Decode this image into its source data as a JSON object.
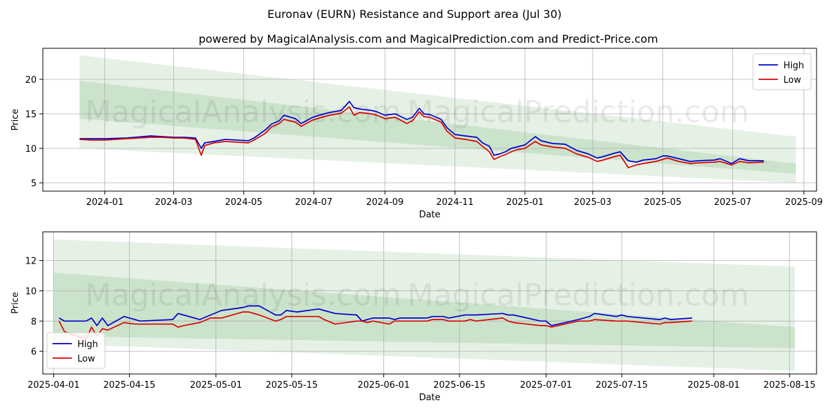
{
  "title": "Euronav (EURN) Resistance and Support area (Jul 30)",
  "subtitle": "powered by MagicalAnalysis.com and MagicalPrediction.com and Predict-Price.com",
  "watermark": [
    "MagicalAnalysis.com",
    "MagicalPrediction.com"
  ],
  "colors": {
    "high": "#0000cc",
    "low": "#dd0000",
    "band": "#2e8b2e",
    "grid": "#b0b0b0"
  },
  "chart_data": [
    {
      "type": "line",
      "xlabel": "Date",
      "ylabel": "Price",
      "xlim": [
        "2023-11-08",
        "2025-09-12"
      ],
      "ylim": [
        3.8,
        24.5
      ],
      "x_ticks": [
        "2024-01",
        "2024-03",
        "2024-05",
        "2024-07",
        "2024-09",
        "2024-11",
        "2025-01",
        "2025-03",
        "2025-05",
        "2025-07",
        "2025-09"
      ],
      "y_ticks": [
        5,
        10,
        15,
        20
      ],
      "grid": true,
      "legend": "top-right",
      "bands": [
        {
          "x": [
            "2023-12-10",
            "2025-08-25"
          ],
          "upper": [
            23.5,
            11.7
          ],
          "lower": [
            10.0,
            5.0
          ],
          "opacity": "light"
        },
        {
          "x": [
            "2023-12-10",
            "2025-08-25"
          ],
          "upper": [
            19.8,
            7.8
          ],
          "lower": [
            14.3,
            6.3
          ],
          "opacity": "medium"
        }
      ],
      "series": [
        {
          "name": "High",
          "x": [
            "2023-12-10",
            "2023-12-20",
            "2024-01-01",
            "2024-01-20",
            "2024-02-10",
            "2024-02-20",
            "2024-03-01",
            "2024-03-10",
            "2024-03-20",
            "2024-03-25",
            "2024-03-28",
            "2024-04-05",
            "2024-04-15",
            "2024-04-25",
            "2024-05-05",
            "2024-05-10",
            "2024-05-20",
            "2024-05-25",
            "2024-06-01",
            "2024-06-05",
            "2024-06-15",
            "2024-06-20",
            "2024-06-30",
            "2024-07-10",
            "2024-07-15",
            "2024-07-25",
            "2024-08-01",
            "2024-08-05",
            "2024-08-10",
            "2024-08-20",
            "2024-08-25",
            "2024-09-01",
            "2024-09-10",
            "2024-09-20",
            "2024-09-25",
            "2024-10-01",
            "2024-10-05",
            "2024-10-10",
            "2024-10-20",
            "2024-10-25",
            "2024-11-01",
            "2024-11-10",
            "2024-11-20",
            "2024-11-25",
            "2024-12-01",
            "2024-12-05",
            "2024-12-10",
            "2024-12-15",
            "2024-12-20",
            "2024-12-25",
            "2025-01-01",
            "2025-01-10",
            "2025-01-15",
            "2025-01-25",
            "2025-02-05",
            "2025-02-15",
            "2025-02-25",
            "2025-03-05",
            "2025-03-10",
            "2025-03-20",
            "2025-03-25",
            "2025-04-01",
            "2025-04-08",
            "2025-04-14",
            "2025-04-25",
            "2025-05-01",
            "2025-05-05",
            "2025-05-15",
            "2025-05-25",
            "2025-06-01",
            "2025-06-15",
            "2025-06-20",
            "2025-06-30",
            "2025-07-07",
            "2025-07-15",
            "2025-07-28"
          ],
          "values": [
            11.4,
            11.4,
            11.4,
            11.5,
            11.8,
            11.7,
            11.6,
            11.6,
            11.5,
            10.0,
            10.8,
            11.0,
            11.3,
            11.2,
            11.1,
            11.5,
            12.7,
            13.5,
            14.0,
            14.8,
            14.3,
            13.6,
            14.5,
            15.0,
            15.2,
            15.5,
            16.8,
            15.9,
            15.7,
            15.5,
            15.3,
            14.8,
            15.0,
            14.2,
            14.5,
            15.8,
            15.0,
            14.9,
            14.2,
            13.0,
            12.0,
            11.8,
            11.6,
            10.8,
            10.3,
            9.0,
            9.2,
            9.5,
            10.0,
            10.2,
            10.5,
            11.7,
            11.1,
            10.7,
            10.6,
            9.7,
            9.2,
            8.6,
            8.8,
            9.3,
            9.5,
            8.2,
            8.0,
            8.3,
            8.5,
            8.9,
            8.9,
            8.5,
            8.1,
            8.2,
            8.3,
            8.5,
            7.8,
            8.5,
            8.2,
            8.2
          ]
        },
        {
          "name": "Low",
          "x": [
            "2023-12-10",
            "2023-12-20",
            "2024-01-01",
            "2024-01-20",
            "2024-02-10",
            "2024-02-20",
            "2024-03-01",
            "2024-03-10",
            "2024-03-20",
            "2024-03-25",
            "2024-03-28",
            "2024-04-05",
            "2024-04-15",
            "2024-04-25",
            "2024-05-05",
            "2024-05-10",
            "2024-05-20",
            "2024-05-25",
            "2024-06-01",
            "2024-06-05",
            "2024-06-15",
            "2024-06-20",
            "2024-06-30",
            "2024-07-10",
            "2024-07-15",
            "2024-07-25",
            "2024-08-01",
            "2024-08-05",
            "2024-08-10",
            "2024-08-20",
            "2024-08-25",
            "2024-09-01",
            "2024-09-10",
            "2024-09-20",
            "2024-09-25",
            "2024-10-01",
            "2024-10-05",
            "2024-10-10",
            "2024-10-20",
            "2024-10-25",
            "2024-11-01",
            "2024-11-10",
            "2024-11-20",
            "2024-11-25",
            "2024-12-01",
            "2024-12-05",
            "2024-12-10",
            "2024-12-15",
            "2024-12-20",
            "2024-12-25",
            "2025-01-01",
            "2025-01-10",
            "2025-01-15",
            "2025-01-25",
            "2025-02-05",
            "2025-02-15",
            "2025-02-25",
            "2025-03-05",
            "2025-03-10",
            "2025-03-20",
            "2025-03-25",
            "2025-04-01",
            "2025-04-08",
            "2025-04-14",
            "2025-04-25",
            "2025-05-01",
            "2025-05-05",
            "2025-05-15",
            "2025-05-25",
            "2025-06-01",
            "2025-06-15",
            "2025-06-20",
            "2025-06-30",
            "2025-07-07",
            "2025-07-15",
            "2025-07-28"
          ],
          "values": [
            11.3,
            11.2,
            11.2,
            11.4,
            11.6,
            11.6,
            11.5,
            11.5,
            11.3,
            9.0,
            10.4,
            10.8,
            11.0,
            10.9,
            10.8,
            11.2,
            12.2,
            13.1,
            13.6,
            14.2,
            13.8,
            13.2,
            14.1,
            14.6,
            14.8,
            15.1,
            16.0,
            14.8,
            15.2,
            15.0,
            14.8,
            14.3,
            14.5,
            13.6,
            14.0,
            15.3,
            14.6,
            14.5,
            13.8,
            12.5,
            11.5,
            11.3,
            11.0,
            10.3,
            9.5,
            8.4,
            8.8,
            9.1,
            9.5,
            9.8,
            10.0,
            11.0,
            10.5,
            10.2,
            10.0,
            9.2,
            8.7,
            8.1,
            8.3,
            8.8,
            9.0,
            7.2,
            7.6,
            7.8,
            8.1,
            8.4,
            8.6,
            8.1,
            7.8,
            7.9,
            8.0,
            8.1,
            7.6,
            8.1,
            7.9,
            8.0
          ]
        }
      ]
    },
    {
      "type": "line",
      "xlabel": "Date",
      "ylabel": "Price",
      "xlim": [
        "2025-03-30",
        "2025-08-20"
      ],
      "ylim": [
        4.5,
        13.9
      ],
      "x_ticks": [
        "2025-04-01",
        "2025-04-15",
        "2025-05-01",
        "2025-05-15",
        "2025-06-01",
        "2025-06-15",
        "2025-07-01",
        "2025-07-15",
        "2025-08-01",
        "2025-08-15"
      ],
      "y_ticks": [
        6,
        8,
        10,
        12
      ],
      "grid": true,
      "legend": "bottom-left",
      "bands": [
        {
          "x": [
            "2025-04-01",
            "2025-08-16"
          ],
          "upper": [
            13.4,
            11.6
          ],
          "lower": [
            6.5,
            4.7
          ],
          "opacity": "light"
        },
        {
          "x": [
            "2025-04-01",
            "2025-08-16"
          ],
          "upper": [
            11.2,
            7.6
          ],
          "lower": [
            7.0,
            6.2
          ],
          "opacity": "medium"
        }
      ],
      "series": [
        {
          "name": "High",
          "x": [
            "2025-04-02",
            "2025-04-03",
            "2025-04-07",
            "2025-04-08",
            "2025-04-09",
            "2025-04-10",
            "2025-04-11",
            "2025-04-14",
            "2025-04-16",
            "2025-04-17",
            "2025-04-23",
            "2025-04-24",
            "2025-04-25",
            "2025-04-28",
            "2025-04-30",
            "2025-05-02",
            "2025-05-06",
            "2025-05-07",
            "2025-05-09",
            "2025-05-12",
            "2025-05-13",
            "2025-05-14",
            "2025-05-16",
            "2025-05-20",
            "2025-05-21",
            "2025-05-23",
            "2025-05-27",
            "2025-05-28",
            "2025-05-29",
            "2025-05-30",
            "2025-06-02",
            "2025-06-03",
            "2025-06-04",
            "2025-06-09",
            "2025-06-10",
            "2025-06-11",
            "2025-06-12",
            "2025-06-13",
            "2025-06-16",
            "2025-06-17",
            "2025-06-18",
            "2025-06-23",
            "2025-06-24",
            "2025-06-25",
            "2025-06-30",
            "2025-07-01",
            "2025-07-02",
            "2025-07-07",
            "2025-07-08",
            "2025-07-09",
            "2025-07-10",
            "2025-07-14",
            "2025-07-15",
            "2025-07-16",
            "2025-07-22",
            "2025-07-23",
            "2025-07-24",
            "2025-07-28"
          ],
          "values": [
            8.2,
            8.0,
            8.0,
            8.2,
            7.7,
            8.2,
            7.7,
            8.3,
            8.1,
            8.0,
            8.1,
            8.5,
            8.4,
            8.1,
            8.4,
            8.7,
            8.9,
            9.0,
            9.0,
            8.4,
            8.4,
            8.7,
            8.6,
            8.8,
            8.7,
            8.5,
            8.4,
            8.0,
            8.1,
            8.2,
            8.2,
            8.1,
            8.2,
            8.2,
            8.3,
            8.3,
            8.3,
            8.2,
            8.4,
            8.4,
            8.4,
            8.5,
            8.4,
            8.4,
            8.0,
            8.0,
            7.7,
            8.1,
            8.2,
            8.3,
            8.5,
            8.3,
            8.4,
            8.3,
            8.1,
            8.2,
            8.1,
            8.2
          ]
        },
        {
          "name": "Low",
          "x": [
            "2025-04-02",
            "2025-04-03",
            "2025-04-07",
            "2025-04-08",
            "2025-04-09",
            "2025-04-10",
            "2025-04-11",
            "2025-04-14",
            "2025-04-16",
            "2025-04-17",
            "2025-04-23",
            "2025-04-24",
            "2025-04-25",
            "2025-04-28",
            "2025-04-30",
            "2025-05-02",
            "2025-05-06",
            "2025-05-07",
            "2025-05-09",
            "2025-05-12",
            "2025-05-13",
            "2025-05-14",
            "2025-05-16",
            "2025-05-20",
            "2025-05-21",
            "2025-05-23",
            "2025-05-27",
            "2025-05-28",
            "2025-05-29",
            "2025-05-30",
            "2025-06-02",
            "2025-06-03",
            "2025-06-04",
            "2025-06-09",
            "2025-06-10",
            "2025-06-11",
            "2025-06-12",
            "2025-06-13",
            "2025-06-16",
            "2025-06-17",
            "2025-06-18",
            "2025-06-23",
            "2025-06-24",
            "2025-06-25",
            "2025-06-30",
            "2025-07-01",
            "2025-07-02",
            "2025-07-07",
            "2025-07-08",
            "2025-07-09",
            "2025-07-10",
            "2025-07-14",
            "2025-07-15",
            "2025-07-16",
            "2025-07-22",
            "2025-07-23",
            "2025-07-24",
            "2025-07-28"
          ],
          "values": [
            8.0,
            7.3,
            6.8,
            7.6,
            7.0,
            7.5,
            7.4,
            7.9,
            7.8,
            7.8,
            7.8,
            7.6,
            7.7,
            7.9,
            8.2,
            8.2,
            8.6,
            8.6,
            8.4,
            8.0,
            8.1,
            8.3,
            8.3,
            8.3,
            8.1,
            7.8,
            8.0,
            8.0,
            7.9,
            8.0,
            7.8,
            8.0,
            8.0,
            8.0,
            8.1,
            8.1,
            8.1,
            8.0,
            8.0,
            8.1,
            8.0,
            8.2,
            8.0,
            7.9,
            7.7,
            7.7,
            7.6,
            8.0,
            8.0,
            8.0,
            8.1,
            8.0,
            8.0,
            8.0,
            7.8,
            7.9,
            7.9,
            8.0
          ]
        }
      ]
    }
  ]
}
